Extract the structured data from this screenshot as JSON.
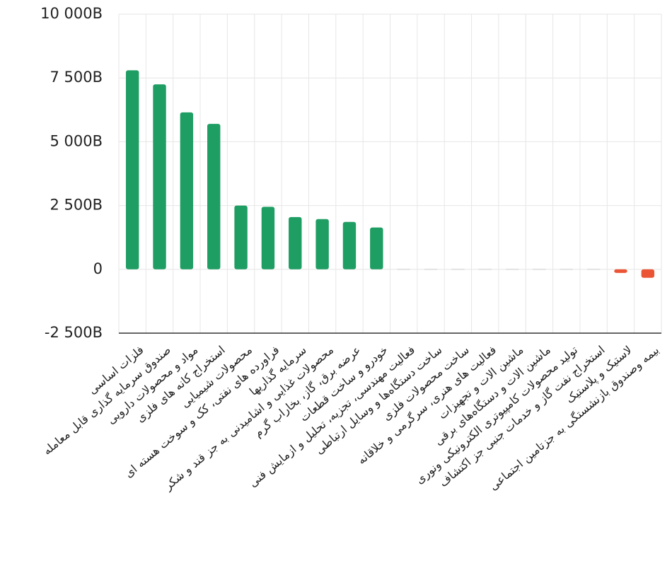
{
  "chart_data": {
    "type": "bar",
    "categories": [
      "فلزات اساسی",
      "صندوق سرمایه گذاری قابل معامله",
      "مواد و محصولات دارویی",
      "استخراج کانه های فلزی",
      "محصولات شیمیایی",
      "فراورده های نفتی، کک و سوخت هسته ای",
      "سرمایه گذاریها",
      "محصولات غذایی و اشامیدنی به جز قند و شکر",
      "عرضه برق، گاز، بخاراب گرم",
      "خودرو و ساخت قطعات",
      "فعالیت مهندسی، تجزیه، تحلیل و ازمایش فنی",
      "ساخت دستگاه‌ها و وسایل ارتباطی",
      "ساخت محصولات فلزی",
      "فعالیت های هنری، سرگرمی و خلاقانه",
      "ماشین الات و تجهیزات",
      "ماشین الات و دستگاه‌های برقی",
      "تولید محصولات کامپیوتری الکترونیکی ونوری",
      "استخراج نفت گاز و خدمات جنبی جز اکتشاف",
      "لاستیک و پلاستیک",
      "بیمه وصندوق بازنشستگی به جزتامین اجتماعی"
    ],
    "values": [
      7800,
      7250,
      6150,
      5700,
      2500,
      2450,
      2050,
      1970,
      1860,
      1640,
      0,
      0,
      0,
      0,
      0,
      0,
      0,
      0,
      -140,
      -330
    ],
    "color": "#1f9e64",
    "negative_color": "#eb5536",
    "zero_color": "#e2e2e2",
    "ylim": [
      -2500,
      10000
    ],
    "yticks": [
      {
        "value": -2500,
        "label": "-2 500B"
      },
      0,
      {
        "value": 2500,
        "label": "2 500B"
      },
      {
        "value": 5000,
        "label": "5 000B"
      },
      {
        "value": 7500,
        "label": "7 500B"
      },
      {
        "value": 10000,
        "label": "10 000B"
      }
    ],
    "grid": true
  }
}
